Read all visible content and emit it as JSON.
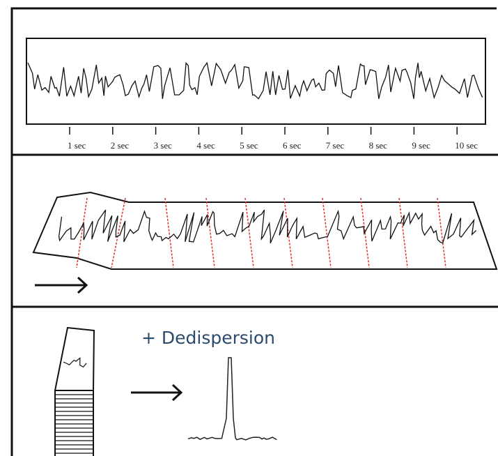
{
  "timeline": {
    "ticks": [
      "1 sec",
      "2 sec",
      "3 sec",
      "4 sec",
      "5 sec",
      "6 sec",
      "7 sec",
      "8 sec",
      "9 sec",
      "10 sec"
    ]
  },
  "annotation": "+ Dedispersion"
}
